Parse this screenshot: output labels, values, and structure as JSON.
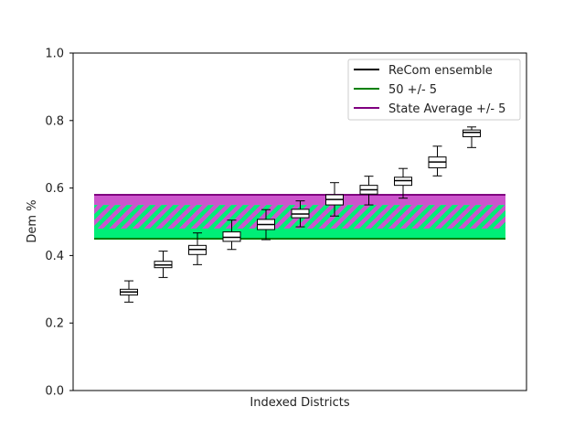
{
  "chart_data": {
    "type": "box",
    "xlabel": "Indexed Districts",
    "ylabel": "Dem %",
    "ylim": [
      0.0,
      1.0
    ],
    "yticks": [
      "0.0",
      "0.2",
      "0.4",
      "0.6",
      "0.8",
      "1.0"
    ],
    "grid": false,
    "legend_position": "top-right",
    "legend": [
      {
        "label": "ReCom ensemble",
        "color": "#000000"
      },
      {
        "label": "50 +/- 5",
        "color": "#008000"
      },
      {
        "label": "State Average +/- 5",
        "color": "#800080"
      }
    ],
    "bands": [
      {
        "name": "50 +/- 5",
        "low": 0.45,
        "high": 0.55,
        "color": "#00ee77"
      },
      {
        "name": "State Average +/- 5",
        "low": 0.48,
        "high": 0.58,
        "color": "#cc55cc"
      }
    ],
    "districts": [
      {
        "min": 0.262,
        "q1": 0.283,
        "median": 0.292,
        "q3": 0.3,
        "max": 0.325
      },
      {
        "min": 0.335,
        "q1": 0.364,
        "median": 0.372,
        "q3": 0.383,
        "max": 0.413
      },
      {
        "min": 0.373,
        "q1": 0.403,
        "median": 0.418,
        "q3": 0.43,
        "max": 0.467
      },
      {
        "min": 0.418,
        "q1": 0.442,
        "median": 0.454,
        "q3": 0.47,
        "max": 0.505
      },
      {
        "min": 0.447,
        "q1": 0.477,
        "median": 0.492,
        "q3": 0.507,
        "max": 0.536
      },
      {
        "min": 0.485,
        "q1": 0.512,
        "median": 0.523,
        "q3": 0.537,
        "max": 0.562
      },
      {
        "min": 0.517,
        "q1": 0.55,
        "median": 0.566,
        "q3": 0.58,
        "max": 0.616
      },
      {
        "min": 0.55,
        "q1": 0.582,
        "median": 0.595,
        "q3": 0.608,
        "max": 0.635
      },
      {
        "min": 0.57,
        "q1": 0.608,
        "median": 0.622,
        "q3": 0.632,
        "max": 0.658
      },
      {
        "min": 0.636,
        "q1": 0.66,
        "median": 0.677,
        "q3": 0.692,
        "max": 0.724
      },
      {
        "min": 0.72,
        "q1": 0.752,
        "median": 0.765,
        "q3": 0.772,
        "max": 0.781
      }
    ]
  }
}
